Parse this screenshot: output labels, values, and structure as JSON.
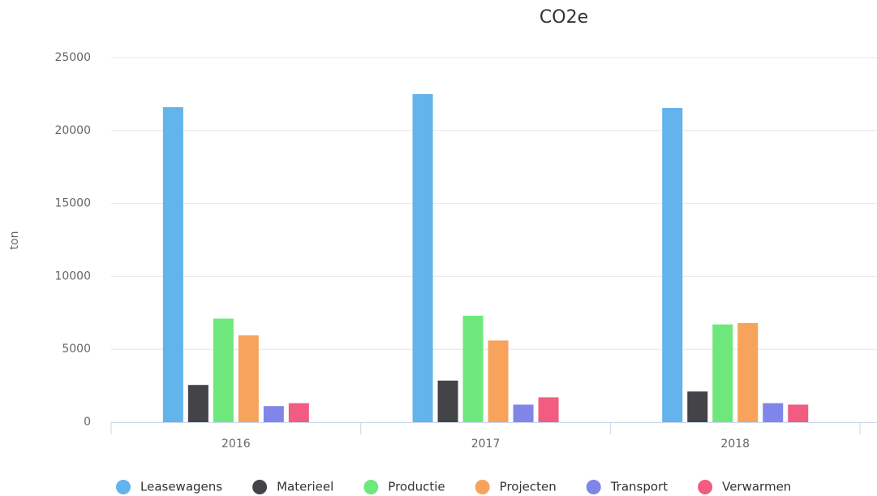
{
  "chart_data": {
    "type": "bar",
    "title": "CO2e",
    "y_label": "ton",
    "categories": [
      "2016",
      "2017",
      "2018"
    ],
    "series": [
      {
        "name": "Leasewagens",
        "color": "#63b3ec",
        "values": [
          21600,
          22500,
          21550
        ]
      },
      {
        "name": "Materieel",
        "color": "#434348",
        "values": [
          2550,
          2850,
          2100
        ]
      },
      {
        "name": "Productie",
        "color": "#6ee87c",
        "values": [
          7100,
          7300,
          6700
        ]
      },
      {
        "name": "Projecten",
        "color": "#f7a35c",
        "values": [
          5950,
          5600,
          6800
        ]
      },
      {
        "name": "Transport",
        "color": "#8085e9",
        "values": [
          1100,
          1200,
          1300
        ]
      },
      {
        "name": "Verwarmen",
        "color": "#f15c80",
        "values": [
          1300,
          1700,
          1200
        ]
      }
    ],
    "ylim": [
      0,
      25000
    ],
    "yticks": [
      0,
      5000,
      10000,
      15000,
      20000,
      25000
    ],
    "grid": true,
    "legend": "bottom"
  }
}
